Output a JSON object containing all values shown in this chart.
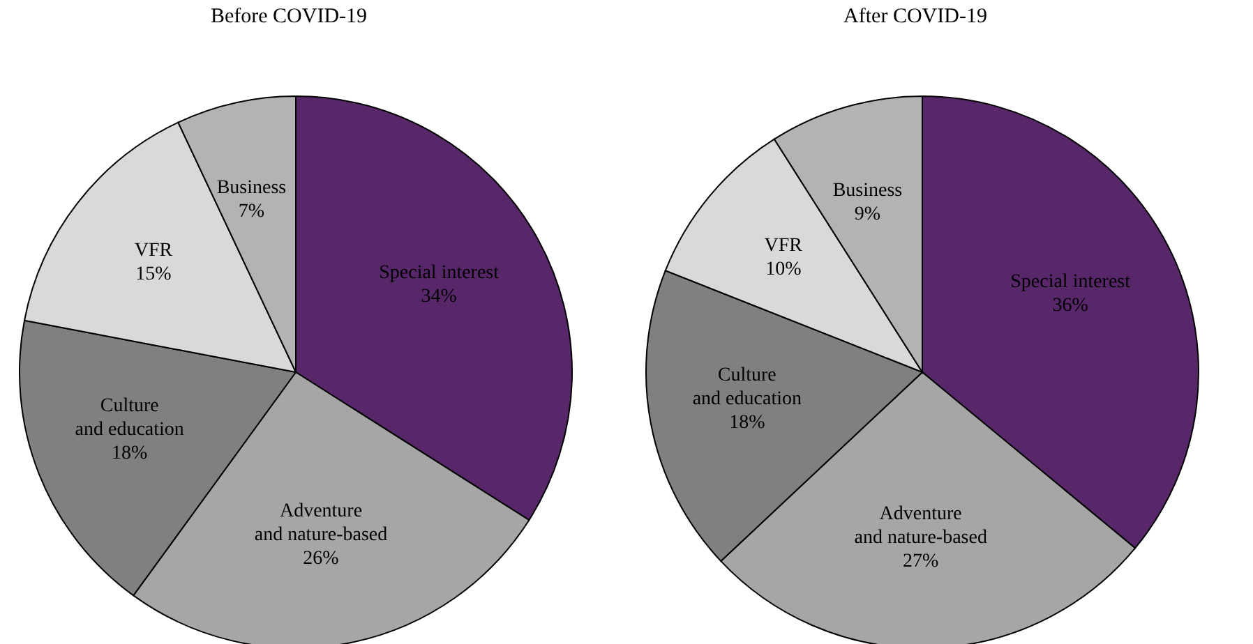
{
  "chart_data": [
    {
      "type": "pie",
      "title": "Before COVID-19",
      "categories": [
        "Special interest",
        "Adventure\nand nature-based",
        "Culture\nand education",
        "VFR",
        "Business"
      ],
      "values": [
        34,
        26,
        18,
        15,
        7
      ],
      "value_labels": [
        "34%",
        "26%",
        "18%",
        "15%",
        "7%"
      ],
      "colors": [
        "#57276a",
        "#a6a6a6",
        "#808080",
        "#d9d9d9",
        "#b3b3b3"
      ],
      "legend": false
    },
    {
      "type": "pie",
      "title": "After COVID-19",
      "categories": [
        "Special interest",
        "Adventure\nand nature-based",
        "Culture\nand education",
        "VFR",
        "Business"
      ],
      "values": [
        36,
        27,
        18,
        10,
        9
      ],
      "value_labels": [
        "36%",
        "27%",
        "18%",
        "10%",
        "9%"
      ],
      "colors": [
        "#57276a",
        "#a6a6a6",
        "#808080",
        "#d9d9d9",
        "#b3b3b3"
      ],
      "legend": false
    }
  ]
}
